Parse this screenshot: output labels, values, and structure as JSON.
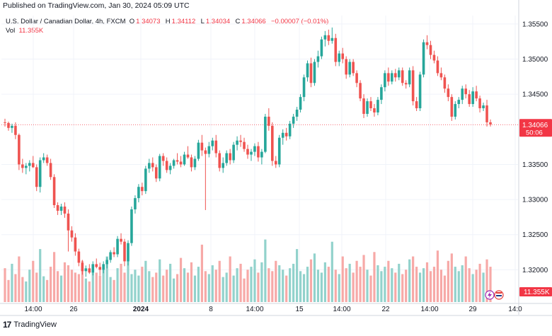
{
  "header": {
    "published": "Published on TradingView.com, Jan 30, 2024 05:09 UTC"
  },
  "legend": {
    "symbol": "U.S. Dollar / Canadian Dollar, 4h, FXCM",
    "o_label": "O",
    "o_value": "1.34073",
    "h_label": "H",
    "h_value": "1.34112",
    "l_label": "L",
    "l_value": "1.34034",
    "c_label": "C",
    "c_value": "1.34066",
    "change": "−0.00007 (−0.01%)",
    "vol_label": "Vol",
    "vol_value": "11.355K"
  },
  "footer": {
    "brand": "TradingView"
  },
  "colors": {
    "up": "#26a69a",
    "down": "#ef5350",
    "up_vol": "#92d2cc",
    "down_vol": "#f7a9a7",
    "last": "#f23645"
  },
  "chart_data": {
    "type": "candlestick",
    "symbol": "USDCAD",
    "interval": "4h",
    "y_ticks": [
      "1.35500",
      "1.35000",
      "1.34500",
      "1.33500",
      "1.33000",
      "1.32500",
      "1.32000"
    ],
    "ylim": [
      1.3153,
      1.3562
    ],
    "x_ticks": [
      "14:00",
      "26",
      "2024",
      "8",
      "14:00",
      "15",
      "14:00",
      "22",
      "14:00",
      "29",
      "14:0"
    ],
    "last_price_label": "1.34066",
    "countdown_label": "50:06",
    "last_price": 1.34066,
    "volume_label": "11.355K",
    "candles": [
      [
        1.341,
        1.3415,
        1.3404,
        1.3409
      ],
      [
        1.3409,
        1.3411,
        1.3398,
        1.3402
      ],
      [
        1.3402,
        1.3408,
        1.3395,
        1.3405
      ],
      [
        1.3405,
        1.341,
        1.3386,
        1.3392
      ],
      [
        1.3392,
        1.3394,
        1.3342,
        1.335
      ],
      [
        1.335,
        1.3358,
        1.3338,
        1.3345
      ],
      [
        1.3345,
        1.3352,
        1.3336,
        1.3348
      ],
      [
        1.3348,
        1.3356,
        1.334,
        1.3352
      ],
      [
        1.3352,
        1.3362,
        1.3345,
        1.3346
      ],
      [
        1.3346,
        1.335,
        1.3312,
        1.3318
      ],
      [
        1.3318,
        1.336,
        1.331,
        1.3356
      ],
      [
        1.3356,
        1.3366,
        1.3352,
        1.336
      ],
      [
        1.336,
        1.3364,
        1.3348,
        1.3352
      ],
      [
        1.3352,
        1.3358,
        1.3328,
        1.3332
      ],
      [
        1.3332,
        1.3336,
        1.3288,
        1.3292
      ],
      [
        1.3292,
        1.3296,
        1.3278,
        1.3284
      ],
      [
        1.3284,
        1.3294,
        1.3278,
        1.329
      ],
      [
        1.329,
        1.3296,
        1.3274,
        1.328
      ],
      [
        1.328,
        1.3286,
        1.3226,
        1.3256
      ],
      [
        1.3256,
        1.3262,
        1.324,
        1.3246
      ],
      [
        1.3246,
        1.3252,
        1.322,
        1.3226
      ],
      [
        1.3226,
        1.323,
        1.3205,
        1.321
      ],
      [
        1.321,
        1.3214,
        1.3193,
        1.3198
      ],
      [
        1.3198,
        1.3206,
        1.319,
        1.3202
      ],
      [
        1.3202,
        1.3208,
        1.3194,
        1.3196
      ],
      [
        1.3196,
        1.3212,
        1.3192,
        1.3208
      ],
      [
        1.3208,
        1.3216,
        1.3202,
        1.3204
      ],
      [
        1.3204,
        1.321,
        1.3192,
        1.32
      ],
      [
        1.32,
        1.3212,
        1.3195,
        1.3208
      ],
      [
        1.3208,
        1.3218,
        1.3202,
        1.3214
      ],
      [
        1.3214,
        1.3228,
        1.321,
        1.3225
      ],
      [
        1.3225,
        1.3232,
        1.3218,
        1.3222
      ],
      [
        1.3222,
        1.3248,
        1.3218,
        1.3244
      ],
      [
        1.3244,
        1.3252,
        1.3236,
        1.324
      ],
      [
        1.324,
        1.3244,
        1.3205,
        1.3212
      ],
      [
        1.3212,
        1.3242,
        1.3206,
        1.3238
      ],
      [
        1.3238,
        1.329,
        1.3234,
        1.3286
      ],
      [
        1.3286,
        1.3306,
        1.328,
        1.3302
      ],
      [
        1.3302,
        1.3322,
        1.3296,
        1.3318
      ],
      [
        1.3318,
        1.3324,
        1.3306,
        1.3312
      ],
      [
        1.3312,
        1.3348,
        1.3308,
        1.3344
      ],
      [
        1.3344,
        1.3358,
        1.3338,
        1.3352
      ],
      [
        1.3352,
        1.336,
        1.334,
        1.3346
      ],
      [
        1.3346,
        1.335,
        1.3325,
        1.333
      ],
      [
        1.333,
        1.3365,
        1.3326,
        1.3362
      ],
      [
        1.3362,
        1.3366,
        1.3348,
        1.3355
      ],
      [
        1.3355,
        1.336,
        1.3338,
        1.3342
      ],
      [
        1.3342,
        1.3352,
        1.3336,
        1.3348
      ],
      [
        1.3348,
        1.3358,
        1.3344,
        1.3356
      ],
      [
        1.3356,
        1.3366,
        1.335,
        1.3354
      ],
      [
        1.3354,
        1.3362,
        1.3346,
        1.335
      ],
      [
        1.335,
        1.3368,
        1.3348,
        1.3364
      ],
      [
        1.3364,
        1.3376,
        1.3358,
        1.336
      ],
      [
        1.336,
        1.3364,
        1.334,
        1.3346
      ],
      [
        1.3346,
        1.3362,
        1.3342,
        1.3358
      ],
      [
        1.3358,
        1.3385,
        1.3355,
        1.3381
      ],
      [
        1.3381,
        1.3392,
        1.3362,
        1.337
      ],
      [
        1.337,
        1.3374,
        1.3285,
        1.3365
      ],
      [
        1.3365,
        1.3382,
        1.336,
        1.3376
      ],
      [
        1.3376,
        1.3388,
        1.337,
        1.3384
      ],
      [
        1.3384,
        1.3392,
        1.336,
        1.3366
      ],
      [
        1.3366,
        1.337,
        1.334,
        1.3345
      ],
      [
        1.3345,
        1.336,
        1.3338,
        1.3352
      ],
      [
        1.3352,
        1.337,
        1.3348,
        1.3366
      ],
      [
        1.3366,
        1.3372,
        1.335,
        1.3356
      ],
      [
        1.3356,
        1.3382,
        1.3352,
        1.3378
      ],
      [
        1.3378,
        1.339,
        1.337,
        1.3384
      ],
      [
        1.3384,
        1.3392,
        1.3375,
        1.3382
      ],
      [
        1.3382,
        1.3388,
        1.3368,
        1.3372
      ],
      [
        1.3372,
        1.3378,
        1.3358,
        1.3364
      ],
      [
        1.3364,
        1.3372,
        1.3355,
        1.3368
      ],
      [
        1.3368,
        1.338,
        1.3362,
        1.3376
      ],
      [
        1.3376,
        1.3382,
        1.3354,
        1.336
      ],
      [
        1.336,
        1.3372,
        1.335,
        1.3368
      ],
      [
        1.3368,
        1.3422,
        1.3366,
        1.3418
      ],
      [
        1.3418,
        1.343,
        1.3398,
        1.3405
      ],
      [
        1.3405,
        1.341,
        1.3348,
        1.3355
      ],
      [
        1.3355,
        1.3362,
        1.3345,
        1.335
      ],
      [
        1.335,
        1.3392,
        1.3346,
        1.3388
      ],
      [
        1.3388,
        1.34,
        1.3378,
        1.3395
      ],
      [
        1.3395,
        1.3402,
        1.3384,
        1.339
      ],
      [
        1.339,
        1.3412,
        1.3386,
        1.3408
      ],
      [
        1.3408,
        1.3422,
        1.3402,
        1.3418
      ],
      [
        1.3418,
        1.3432,
        1.3412,
        1.3428
      ],
      [
        1.3428,
        1.345,
        1.3424,
        1.3446
      ],
      [
        1.3446,
        1.3478,
        1.344,
        1.3474
      ],
      [
        1.3474,
        1.3498,
        1.3468,
        1.3494
      ],
      [
        1.3494,
        1.3502,
        1.346,
        1.3466
      ],
      [
        1.3466,
        1.35,
        1.3462,
        1.3496
      ],
      [
        1.3496,
        1.3512,
        1.3488,
        1.3504
      ],
      [
        1.3504,
        1.3532,
        1.35,
        1.3528
      ],
      [
        1.3528,
        1.354,
        1.3518,
        1.3534
      ],
      [
        1.3534,
        1.3542,
        1.352,
        1.3526
      ],
      [
        1.3526,
        1.3545,
        1.3522,
        1.353
      ],
      [
        1.353,
        1.3536,
        1.349,
        1.3496
      ],
      [
        1.3496,
        1.3512,
        1.349,
        1.3508
      ],
      [
        1.3508,
        1.3516,
        1.3494,
        1.35
      ],
      [
        1.35,
        1.3504,
        1.3472,
        1.3478
      ],
      [
        1.3478,
        1.35,
        1.3474,
        1.3496
      ],
      [
        1.3496,
        1.35,
        1.3476,
        1.348
      ],
      [
        1.348,
        1.3484,
        1.346,
        1.3466
      ],
      [
        1.3466,
        1.347,
        1.344,
        1.3444
      ],
      [
        1.3444,
        1.345,
        1.3416,
        1.3422
      ],
      [
        1.3422,
        1.3444,
        1.3418,
        1.344
      ],
      [
        1.344,
        1.3446,
        1.3426,
        1.343
      ],
      [
        1.343,
        1.3436,
        1.3418,
        1.3424
      ],
      [
        1.3424,
        1.3446,
        1.342,
        1.3442
      ],
      [
        1.3442,
        1.3464,
        1.3436,
        1.346
      ],
      [
        1.346,
        1.3484,
        1.3454,
        1.348
      ],
      [
        1.348,
        1.3488,
        1.3462,
        1.3468
      ],
      [
        1.3468,
        1.3484,
        1.3464,
        1.348
      ],
      [
        1.348,
        1.3486,
        1.3468,
        1.3474
      ],
      [
        1.3474,
        1.3488,
        1.347,
        1.3484
      ],
      [
        1.3484,
        1.3488,
        1.3462,
        1.3466
      ],
      [
        1.3466,
        1.347,
        1.3458,
        1.3464
      ],
      [
        1.3464,
        1.3488,
        1.346,
        1.3484
      ],
      [
        1.3484,
        1.349,
        1.3434,
        1.344
      ],
      [
        1.344,
        1.3446,
        1.3426,
        1.343
      ],
      [
        1.343,
        1.3482,
        1.3426,
        1.3478
      ],
      [
        1.3478,
        1.3528,
        1.3474,
        1.3524
      ],
      [
        1.3524,
        1.3534,
        1.3514,
        1.352
      ],
      [
        1.352,
        1.3526,
        1.35,
        1.3506
      ],
      [
        1.3506,
        1.3512,
        1.3494,
        1.3498
      ],
      [
        1.3498,
        1.3504,
        1.3476,
        1.348
      ],
      [
        1.348,
        1.3488,
        1.347,
        1.3474
      ],
      [
        1.3474,
        1.3478,
        1.3452,
        1.3458
      ],
      [
        1.3458,
        1.3464,
        1.344,
        1.3446
      ],
      [
        1.3446,
        1.345,
        1.3412,
        1.3418
      ],
      [
        1.3418,
        1.344,
        1.3414,
        1.3436
      ],
      [
        1.3436,
        1.3446,
        1.343,
        1.3442
      ],
      [
        1.3442,
        1.3462,
        1.3436,
        1.3458
      ],
      [
        1.3458,
        1.3464,
        1.3444,
        1.345
      ],
      [
        1.345,
        1.3456,
        1.3432,
        1.3436
      ],
      [
        1.3436,
        1.346,
        1.3432,
        1.3454
      ],
      [
        1.3454,
        1.3462,
        1.344,
        1.3444
      ],
      [
        1.3444,
        1.3448,
        1.3424,
        1.343
      ],
      [
        1.343,
        1.3438,
        1.3426,
        1.3434
      ],
      [
        1.3434,
        1.3442,
        1.3404,
        1.341
      ],
      [
        1.341,
        1.3414,
        1.3404,
        1.3407
      ]
    ],
    "volumes": [
      0.46,
      0.3,
      0.52,
      0.38,
      0.62,
      0.34,
      0.28,
      0.44,
      0.56,
      0.4,
      0.72,
      0.35,
      0.3,
      0.48,
      0.68,
      0.42,
      0.36,
      0.54,
      0.5,
      0.44,
      0.4,
      0.38,
      0.56,
      0.32,
      0.28,
      0.44,
      0.4,
      0.36,
      0.48,
      0.62,
      0.34,
      0.3,
      0.46,
      0.52,
      0.4,
      0.7,
      0.38,
      0.44,
      0.36,
      0.48,
      0.56,
      0.42,
      0.34,
      0.4,
      0.58,
      0.36,
      0.44,
      0.52,
      0.32,
      0.38,
      0.6,
      0.46,
      0.4,
      0.54,
      0.36,
      0.48,
      0.78,
      0.42,
      0.38,
      0.5,
      0.44,
      0.56,
      0.34,
      0.4,
      0.62,
      0.36,
      0.46,
      0.52,
      0.32,
      0.44,
      0.48,
      0.58,
      0.4,
      0.54,
      0.85,
      0.46,
      0.42,
      0.56,
      0.5,
      0.44,
      0.36,
      0.46,
      0.52,
      0.72,
      0.42,
      0.38,
      0.48,
      0.58,
      0.66,
      0.44,
      0.4,
      0.54,
      0.48,
      0.82,
      0.44,
      0.38,
      0.62,
      0.46,
      0.52,
      0.4,
      0.56,
      0.48,
      0.64,
      0.44,
      0.36,
      0.68,
      0.5,
      0.42,
      0.48,
      0.56,
      0.46,
      0.4,
      0.52,
      0.38,
      0.44,
      0.58,
      0.62,
      0.48,
      0.4,
      0.46,
      0.54,
      0.42,
      0.48,
      0.7,
      0.44,
      0.36,
      0.56,
      0.66,
      0.48,
      0.42,
      0.5,
      0.62,
      0.46,
      0.38,
      0.44,
      0.52,
      0.4,
      0.58,
      0.48,
      0.46,
      0.3
    ]
  }
}
